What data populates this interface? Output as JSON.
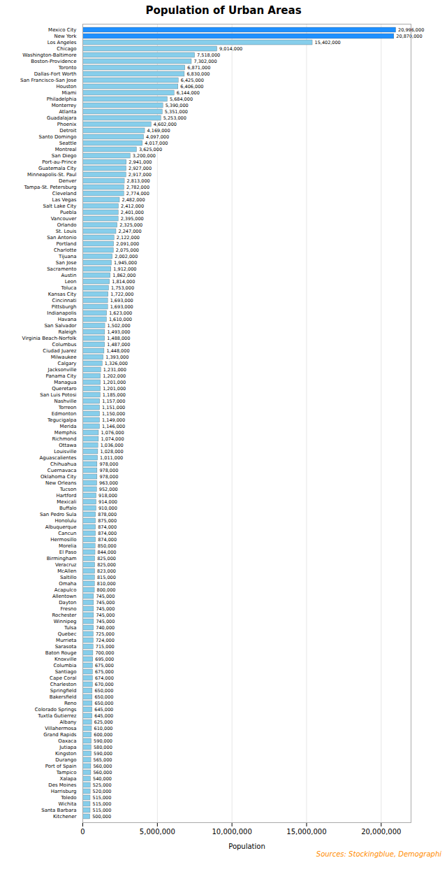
{
  "chart_data": {
    "type": "bar",
    "orientation": "horizontal",
    "title": "Population of Urban Areas",
    "xlabel": "Population",
    "annotations": [
      "Sources: Stockingblue, Demographi"
    ],
    "categories": [
      "Mexico City",
      "New York",
      "Los Angeles",
      "Chicago",
      "Washington-Baltimore",
      "Boston-Providence",
      "Toronto",
      "Dallas-Fort Worth",
      "San Francisco-San Jose",
      "Houston",
      "Miami",
      "Philadelphia",
      "Monterrey",
      "Atlanta",
      "Guadalajara",
      "Phoenix",
      "Detroit",
      "Santo Domingo",
      "Seattle",
      "Montreal",
      "San Diego",
      "Port-au-Prince",
      "Guatemala City",
      "Minneapolis-St. Paul",
      "Denver",
      "Tampa-St. Petersburg",
      "Cleveland",
      "Las Vegas",
      "Salt Lake City",
      "Puebla",
      "Vancouver",
      "Orlando",
      "St. Louis",
      "San Antonio",
      "Portland",
      "Charlotte",
      "Tijuana",
      "San Jose",
      "Sacramento",
      "Austin",
      "Leon",
      "Toluca",
      "Kansas City",
      "Cincinnati",
      "Pittsburgh",
      "Indianapolis",
      "Havana",
      "San Salvador",
      "Raleigh",
      "Virginia Beach-Norfolk",
      "Columbus",
      "Ciudad Juarez",
      "Milwaukee",
      "Calgary",
      "Jacksonville",
      "Panama City",
      "Managua",
      "Queretaro",
      "San Luis Potosi",
      "Nashville",
      "Torreon",
      "Edmonton",
      "Tegucigalpa",
      "Merida",
      "Memphis",
      "Richmond",
      "Ottawa",
      "Louisville",
      "Aguascalientes",
      "Chihuahua",
      "Cuernavaca",
      "Oklahoma City",
      "New Orleans",
      "Tucson",
      "Hartford",
      "Mexicali",
      "Buffalo",
      "San Pedro Sula",
      "Honolulu",
      "Albuquerque",
      "Cancun",
      "Hermosillo",
      "Morelia",
      "El Paso",
      "Birmingham",
      "Veracruz",
      "McAllen",
      "Saltillo",
      "Omaha",
      "Acapulco",
      "Allentown",
      "Dayton",
      "Fresno",
      "Rochester",
      "Winnipeg",
      "Tulsa",
      "Quebec",
      "Murrieta",
      "Sarasota",
      "Baton Rouge",
      "Knoxville",
      "Columbia",
      "Santiago",
      "Cape Coral",
      "Charleston",
      "Springfield",
      "Bakersfield",
      "Reno",
      "Colorado Springs",
      "Tuxtla Gutierrez",
      "Albany",
      "Villahermosa",
      "Grand Rapids",
      "Oaxaca",
      "Jutiapa",
      "Kingston",
      "Durango",
      "Port of Spain",
      "Tampico",
      "Xalapa",
      "Des Moines",
      "Harrisburg",
      "Toledo",
      "Wichita",
      "Santa Barbara",
      "Kitchener"
    ],
    "values": [
      20996000,
      20870000,
      15402000,
      9014000,
      7518000,
      7302000,
      6871000,
      6830000,
      6425000,
      6406000,
      6144000,
      5684000,
      5390000,
      5351000,
      5253000,
      4602000,
      4169000,
      4097000,
      4017000,
      3625000,
      3200000,
      2941000,
      2927000,
      2917000,
      2813000,
      2782000,
      2774000,
      2482000,
      2412000,
      2401000,
      2395000,
      2325000,
      2247000,
      2122000,
      2091000,
      2075000,
      2002000,
      1945000,
      1912000,
      1862000,
      1814000,
      1753000,
      1722000,
      1693000,
      1693000,
      1623000,
      1610000,
      1502000,
      1493000,
      1488000,
      1487000,
      1448000,
      1393000,
      1326000,
      1231000,
      1202000,
      1201000,
      1201000,
      1185000,
      1157000,
      1151000,
      1150000,
      1149000,
      1146000,
      1076000,
      1074000,
      1036000,
      1028000,
      1011000,
      978000,
      978000,
      978000,
      963000,
      952000,
      918000,
      914000,
      910000,
      878000,
      875000,
      874000,
      874000,
      874000,
      850000,
      844000,
      825000,
      825000,
      823000,
      815000,
      810000,
      800000,
      745000,
      745000,
      745000,
      745000,
      745000,
      740000,
      725000,
      724000,
      715000,
      700000,
      695000,
      675000,
      675000,
      674000,
      670000,
      650000,
      650000,
      650000,
      645000,
      645000,
      625000,
      610000,
      600000,
      590000,
      580000,
      590000,
      565000,
      560000,
      560000,
      540000,
      525000,
      520000,
      515000,
      515000,
      515000,
      500000
    ],
    "value_labels": [
      "20,996,000",
      "20,870,000",
      "15,402,000",
      "9,014,000",
      "7,518,000",
      "7,302,000",
      "6,871,000",
      "6,830,000",
      "6,425,000",
      "6,406,000",
      "6,144,000",
      "5,684,000",
      "5,390,000",
      "5,351,000",
      "5,253,000",
      "4,602,000",
      "4,169,000",
      "4,097,000",
      "4,017,000",
      "3,625,000",
      "3,200,000",
      "2,941,000",
      "2,927,000",
      "2,917,000",
      "2,813,000",
      "2,782,000",
      "2,774,000",
      "2,482,000",
      "2,412,000",
      "2,401,000",
      "2,395,000",
      "2,325,000",
      "2,247,000",
      "2,122,000",
      "2,091,000",
      "2,075,000",
      "2,002,000",
      "1,945,000",
      "1,912,000",
      "1,862,000",
      "1,814,000",
      "1,753,000",
      "1,722,000",
      "1,693,000",
      "1,693,000",
      "1,623,000",
      "1,610,000",
      "1,502,000",
      "1,493,000",
      "1,488,000",
      "1,487,000",
      "1,448,000",
      "1,393,000",
      "1,326,000",
      "1,231,000",
      "1,202,000",
      "1,201,000",
      "1,201,000",
      "1,185,000",
      "1,157,000",
      "1,151,000",
      "1,150,000",
      "1,149,000",
      "1,146,000",
      "1,076,000",
      "1,074,000",
      "1,036,000",
      "1,028,000",
      "1,011,000",
      "978,000",
      "978,000",
      "978,000",
      "963,000",
      "952,000",
      "918,000",
      "914,000",
      "910,000",
      "878,000",
      "875,000",
      "874,000",
      "874,000",
      "874,000",
      "850,000",
      "844,000",
      "825,000",
      "825,000",
      "823,000",
      "815,000",
      "810,000",
      "800,000",
      "745,000",
      "745,000",
      "745,000",
      "745,000",
      "745,000",
      "740,000",
      "725,000",
      "724,000",
      "715,000",
      "700,000",
      "695,000",
      "675,000",
      "675,000",
      "674,000",
      "670,000",
      "650,000",
      "650,000",
      "650,000",
      "645,000",
      "645,000",
      "625,000",
      "610,000",
      "600,000",
      "590,000",
      "580,000",
      "590,000",
      "565,000",
      "560,000",
      "560,000",
      "540,000",
      "525,000",
      "520,000",
      "515,000",
      "515,000",
      "515,000",
      "500,000"
    ],
    "colors": [
      "#1E90FF",
      "#1E90FF",
      "#87CEEB",
      "#87CEEB",
      "#87CEEB",
      "#87CEEB",
      "#87CEEB",
      "#87CEEB",
      "#87CEEB",
      "#87CEEB",
      "#87CEEB",
      "#87CEEB",
      "#87CEEB",
      "#87CEEB",
      "#87CEEB",
      "#87CEEB",
      "#87CEEB",
      "#87CEEB",
      "#87CEEB",
      "#87CEEB",
      "#87CEEB",
      "#87CEEB",
      "#87CEEB",
      "#87CEEB",
      "#87CEEB",
      "#87CEEB",
      "#87CEEB",
      "#87CEEB",
      "#87CEEB",
      "#87CEEB",
      "#87CEEB",
      "#87CEEB",
      "#87CEEB",
      "#87CEEB",
      "#87CEEB",
      "#87CEEB",
      "#87CEEB",
      "#87CEEB",
      "#87CEEB",
      "#87CEEB",
      "#87CEEB",
      "#87CEEB",
      "#87CEEB",
      "#87CEEB",
      "#87CEEB",
      "#87CEEB",
      "#87CEEB",
      "#87CEEB",
      "#87CEEB",
      "#87CEEB",
      "#87CEEB",
      "#87CEEB",
      "#87CEEB",
      "#87CEEB",
      "#87CEEB",
      "#87CEEB",
      "#87CEEB",
      "#87CEEB",
      "#87CEEB",
      "#87CEEB",
      "#87CEEB",
      "#87CEEB",
      "#87CEEB",
      "#87CEEB",
      "#87CEEB",
      "#87CEEB",
      "#87CEEB",
      "#87CEEB",
      "#87CEEB",
      "#87CEEB",
      "#87CEEB",
      "#87CEEB",
      "#87CEEB",
      "#87CEEB",
      "#87CEEB",
      "#87CEEB",
      "#87CEEB",
      "#87CEEB",
      "#87CEEB",
      "#87CEEB",
      "#87CEEB",
      "#87CEEB",
      "#87CEEB",
      "#87CEEB",
      "#87CEEB",
      "#87CEEB",
      "#87CEEB",
      "#87CEEB",
      "#87CEEB",
      "#87CEEB",
      "#87CEEB",
      "#87CEEB",
      "#87CEEB",
      "#87CEEB",
      "#87CEEB",
      "#87CEEB",
      "#87CEEB",
      "#87CEEB",
      "#87CEEB",
      "#87CEEB",
      "#87CEEB",
      "#87CEEB",
      "#87CEEB",
      "#87CEEB",
      "#87CEEB",
      "#87CEEB",
      "#87CEEB",
      "#87CEEB",
      "#87CEEB",
      "#87CEEB",
      "#87CEEB",
      "#87CEEB",
      "#87CEEB",
      "#87CEEB",
      "#87CEEB",
      "#87CEEB",
      "#87CEEB",
      "#87CEEB",
      "#87CEEB",
      "#87CEEB",
      "#87CEEB",
      "#87CEEB",
      "#87CEEB",
      "#87CEEB",
      "#87CEEB",
      "#87CEEB"
    ],
    "xlim": [
      0,
      22000000
    ],
    "xticks": [
      0,
      {
        "value": 5000000,
        "label": "5,000,000"
      },
      {
        "value": 10000000,
        "label": "10,000,000"
      },
      {
        "value": 15000000,
        "label": "15,000,000"
      },
      {
        "value": 20000000,
        "label": "20,000,000"
      }
    ],
    "grid": true,
    "data_labels": true
  }
}
